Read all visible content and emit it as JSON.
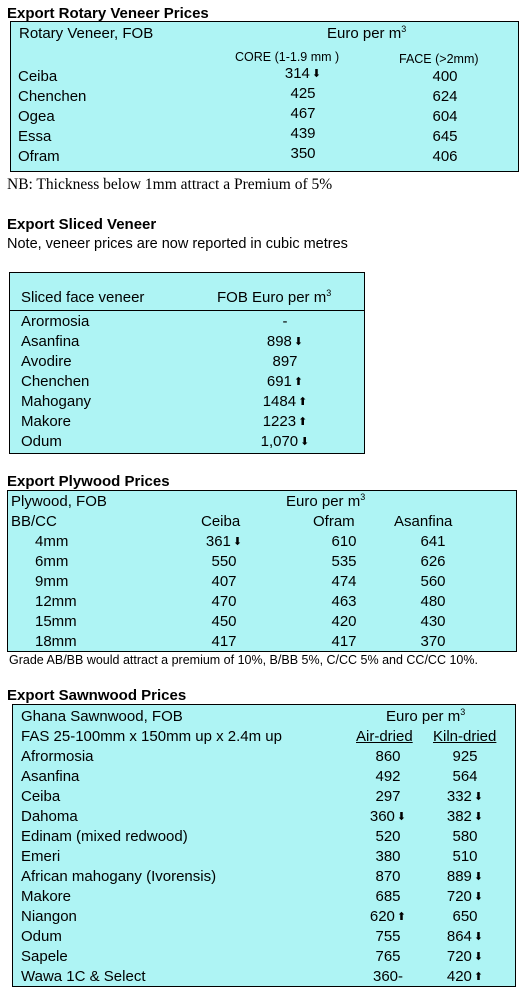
{
  "rotary": {
    "title": "Export Rotary Veneer Prices",
    "header_left": "Rotary Veneer,  FOB",
    "header_unit": "Euro  per m",
    "col_core": "CORE (1-1.9 mm )",
    "col_face": "FACE (>2mm)",
    "rows": [
      {
        "name": "Ceiba",
        "core": "314",
        "core_arrow": "down",
        "face": "400"
      },
      {
        "name": "Chenchen",
        "core": "425",
        "face": "624"
      },
      {
        "name": "Ogea",
        "core": "467",
        "face": "604"
      },
      {
        "name": "Essa",
        "core": "439",
        "face": "645"
      },
      {
        "name": "Ofram",
        "core": "350",
        "face": "406"
      }
    ],
    "note": "NB: Thickness below 1mm attract a Premium of 5%"
  },
  "sliced": {
    "title": "Export Sliced Veneer",
    "note": "Note, veneer prices are now reported in cubic metres",
    "header_left": "Sliced face veneer",
    "header_right": "FOB Euro per m",
    "rows": [
      {
        "name": "Arormosia",
        "value": "-"
      },
      {
        "name": "Asanfina",
        "value": "898",
        "arrow": "down"
      },
      {
        "name": "Avodire",
        "value": "897"
      },
      {
        "name": "Chenchen",
        "value": "691",
        "arrow": "up"
      },
      {
        "name": "Mahogany",
        "value": "1484",
        "arrow": "up"
      },
      {
        "name": "Makore",
        "value": "1223",
        "arrow": "up"
      },
      {
        "name": "Odum",
        "value": "1,070",
        "arrow": "down"
      }
    ]
  },
  "plywood": {
    "title": "Export Plywood Prices",
    "header_left": "Plywood, FOB",
    "header_unit": "Euro per m",
    "header_grade": "BB/CC",
    "cols": [
      "Ceiba",
      "Ofram",
      "Asanfina"
    ],
    "rows": [
      {
        "size": "4mm",
        "ceiba": "361",
        "ceiba_arrow": "down",
        "ofram": "610",
        "asanfina": "641"
      },
      {
        "size": "6mm",
        "ceiba": "550",
        "ofram": "535",
        "asanfina": "626"
      },
      {
        "size": "9mm",
        "ceiba": "407",
        "ofram": "474",
        "asanfina": "560"
      },
      {
        "size": "12mm",
        "ceiba": "470",
        "ofram": "463",
        "asanfina": "480"
      },
      {
        "size": "15mm",
        "ceiba": "450",
        "ofram": "420",
        "asanfina": "430"
      },
      {
        "size": "18mm",
        "ceiba": "417",
        "ofram": "417",
        "asanfina": "370"
      }
    ],
    "note": "Grade AB/BB would attract a premium of 10%, B/BB 5%, C/CC 5% and CC/CC 10%."
  },
  "sawnwood": {
    "title": "Export Sawnwood Prices",
    "header_left": "Ghana Sawnwood, FOB",
    "header_unit": "Euro per m",
    "header_spec": "FAS 25-100mm x 150mm up x 2.4m up",
    "col_air": "Air-dried",
    "col_kiln": "Kiln-dried",
    "rows": [
      {
        "name": "Afrormosia",
        "air": "860",
        "kiln": "925"
      },
      {
        "name": "Asanfina",
        "air": "492",
        "kiln": "564"
      },
      {
        "name": "Ceiba",
        "air": "297",
        "kiln": "332",
        "kiln_arrow": "down"
      },
      {
        "name": "Dahoma",
        "air": "360",
        "air_arrow": "down",
        "kiln": "382",
        "kiln_arrow": "down"
      },
      {
        "name": "Edinam (mixed redwood)",
        "air": "520",
        "kiln": "580"
      },
      {
        "name": "Emeri",
        "air": "380",
        "kiln": "510"
      },
      {
        "name": "African mahogany (Ivorensis)",
        "air": "870",
        "kiln": "889",
        "kiln_arrow": "down"
      },
      {
        "name": "Makore",
        "air": "685",
        "kiln": "720",
        "kiln_arrow": "down"
      },
      {
        "name": "Niangon",
        "air": "620",
        "air_arrow": "up",
        "kiln": "650"
      },
      {
        "name": "Odum",
        "air": "755",
        "kiln": "864",
        "kiln_arrow": "down"
      },
      {
        "name": "Sapele",
        "air": "765",
        "kiln": "720",
        "kiln_arrow": "down"
      },
      {
        "name": "Wawa 1C & Select",
        "air": "360-",
        "kiln": "420",
        "kiln_arrow": "up"
      }
    ]
  },
  "superscript": "3",
  "arrow_glyphs": {
    "up": "⬆",
    "down": "⬇"
  },
  "colors": {
    "table_bg": "#aef4f4",
    "border": "#000000"
  }
}
